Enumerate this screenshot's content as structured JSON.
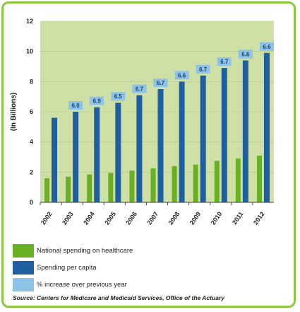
{
  "chart_data": {
    "type": "bar",
    "categories": [
      "2002",
      "2003",
      "2004",
      "2005",
      "2006",
      "2007",
      "2008",
      "2009",
      "2010",
      "2011",
      "2012"
    ],
    "series": [
      {
        "name": "National spending on healthcare",
        "color": "#6ab023",
        "values": [
          1.6,
          1.7,
          1.85,
          1.95,
          2.1,
          2.25,
          2.4,
          2.5,
          2.75,
          2.9,
          3.1
        ]
      },
      {
        "name": "Spending per capita",
        "color": "#1f5fa0",
        "values": [
          5.6,
          6.0,
          6.3,
          6.6,
          7.1,
          7.5,
          8.0,
          8.4,
          8.9,
          9.4,
          9.9
        ]
      }
    ],
    "pct_labels": [
      "",
      "6.0",
      "6.9",
      "6.5",
      "6.7",
      "6.7",
      "6.6",
      "6.7",
      "6.7",
      "6.6",
      "6.6"
    ],
    "pct_label_name": "% increase over previous year",
    "pct_label_color": "#8ec3e8",
    "ylabel": "(In Billions)",
    "ylim": [
      0,
      12
    ],
    "yticks": [
      0,
      2,
      4,
      6,
      8,
      10,
      12
    ],
    "background_color": "#cfe0a6"
  },
  "legend": [
    {
      "label": "National spending on healthcare",
      "color": "#6ab023"
    },
    {
      "label": "Spending per capita",
      "color": "#1f5fa0"
    },
    {
      "label": "% increase over previous year",
      "color": "#8ec3e8"
    }
  ],
  "source": "Source: Centers for Medicare and Medicaid Services, Office of the Actuary"
}
